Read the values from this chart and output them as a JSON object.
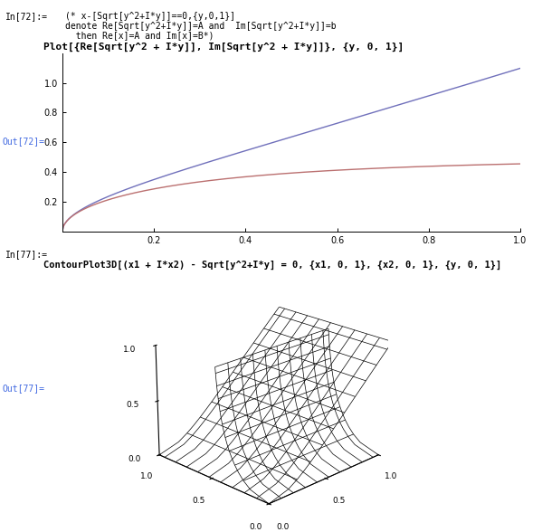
{
  "bg_color": "#ffffff",
  "text_color": "#000000",
  "teal_color": "#008b8b",
  "blue_color": "#4169e1",
  "out_color": "#4169e1",
  "line1_color": "#7070bb",
  "line2_color": "#bb7070",
  "plot1_xlim": [
    0.0,
    1.0
  ],
  "plot1_ylim": [
    0.0,
    1.2
  ],
  "plot1_xticks": [
    0.2,
    0.4,
    0.6,
    0.8,
    1.0
  ],
  "plot1_yticks": [
    0.2,
    0.4,
    0.6,
    0.8,
    1.0
  ]
}
